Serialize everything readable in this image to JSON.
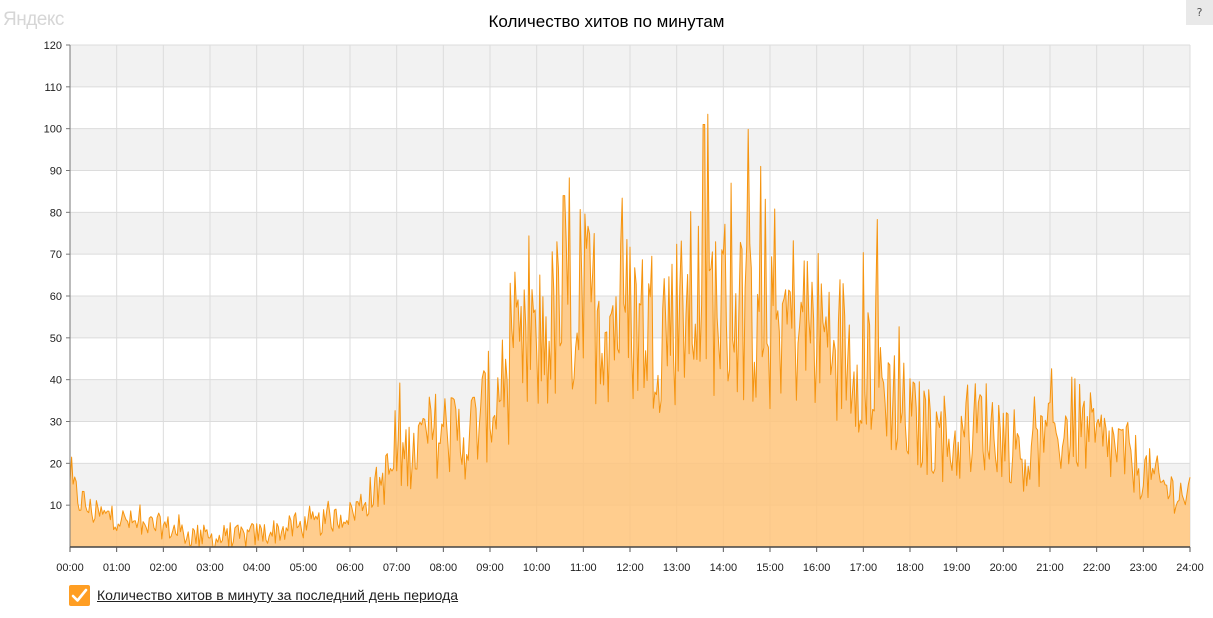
{
  "brand": {
    "logo_text": "Яндекс"
  },
  "help_button": {
    "label": "?"
  },
  "chart_data": {
    "type": "area",
    "title": "Количество хитов по минутам",
    "xlabel": "",
    "ylabel": "",
    "x_ticks": [
      "00:00",
      "01:00",
      "02:00",
      "03:00",
      "04:00",
      "05:00",
      "06:00",
      "07:00",
      "08:00",
      "09:00",
      "10:00",
      "11:00",
      "12:00",
      "13:00",
      "14:00",
      "15:00",
      "16:00",
      "17:00",
      "18:00",
      "19:00",
      "20:00",
      "21:00",
      "22:00",
      "23:00",
      "24:00"
    ],
    "y_ticks": [
      10,
      20,
      30,
      40,
      50,
      60,
      70,
      80,
      90,
      100,
      110,
      120
    ],
    "ylim": [
      0,
      120
    ],
    "xlim_hours": [
      0,
      24
    ],
    "grid": true,
    "legend_position": "bottom-left",
    "colors": {
      "line": "#f5940f",
      "fill": "#ffc47a",
      "legend_check": "#ff9e23",
      "band": "#f2f2f2"
    },
    "series": [
      {
        "name": "Количество хитов в минуту за последний день периода",
        "x_hours": [
          0,
          0.5,
          1,
          1.5,
          2,
          2.5,
          3,
          3.5,
          4,
          4.5,
          5,
          5.5,
          6,
          6.5,
          7,
          7.5,
          8,
          8.5,
          9,
          9.5,
          10,
          10.5,
          11,
          11.5,
          12,
          12.5,
          13,
          13.5,
          14,
          14.5,
          15,
          15.5,
          16,
          16.5,
          17,
          17.5,
          18,
          18.5,
          19,
          19.5,
          20,
          20.5,
          21,
          21.5,
          22,
          22.5,
          23,
          23.5,
          24
        ],
        "values": [
          14,
          8,
          7,
          5,
          5,
          3,
          2,
          2,
          3,
          4,
          5,
          6,
          8,
          13,
          20,
          25,
          28,
          26,
          34,
          42,
          48,
          55,
          58,
          56,
          55,
          53,
          55,
          60,
          58,
          55,
          52,
          55,
          52,
          48,
          45,
          38,
          30,
          27,
          24,
          30,
          27,
          21,
          25,
          30,
          25,
          23,
          18,
          14,
          12
        ],
        "peaks": [
          {
            "x": "13:35",
            "y": 101
          },
          {
            "x": "14:10",
            "y": 87
          },
          {
            "x": "10:35",
            "y": 84
          }
        ]
      }
    ]
  }
}
